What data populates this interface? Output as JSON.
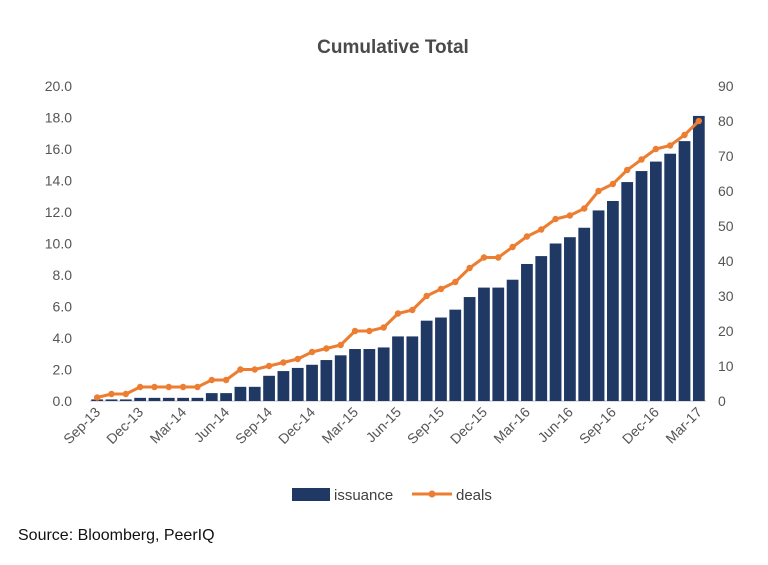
{
  "chart_data": {
    "type": "bar+line",
    "title": "Cumulative Total",
    "x": [
      "Sep-13",
      "Oct-13",
      "Nov-13",
      "Dec-13",
      "Jan-14",
      "Feb-14",
      "Mar-14",
      "Apr-14",
      "May-14",
      "Jun-14",
      "Jul-14",
      "Aug-14",
      "Sep-14",
      "Oct-14",
      "Nov-14",
      "Dec-14",
      "Jan-15",
      "Feb-15",
      "Mar-15",
      "Apr-15",
      "May-15",
      "Jun-15",
      "Jul-15",
      "Aug-15",
      "Sep-15",
      "Oct-15",
      "Nov-15",
      "Dec-15",
      "Jan-16",
      "Feb-16",
      "Mar-16",
      "Apr-16",
      "May-16",
      "Jun-16",
      "Jul-16",
      "Aug-16",
      "Sep-16",
      "Oct-16",
      "Nov-16",
      "Dec-16",
      "Jan-17",
      "Feb-17",
      "Mar-17"
    ],
    "x_tick_labels": [
      "Sep-13",
      "Dec-13",
      "Mar-14",
      "Jun-14",
      "Sep-14",
      "Dec-14",
      "Mar-15",
      "Jun-15",
      "Sep-15",
      "Dec-15",
      "Mar-16",
      "Jun-16",
      "Sep-16",
      "Dec-16",
      "Mar-17"
    ],
    "series": [
      {
        "name": "issuance",
        "type": "bar",
        "axis": "left",
        "color": "#1f3864",
        "values": [
          0.1,
          0.1,
          0.1,
          0.2,
          0.2,
          0.2,
          0.2,
          0.2,
          0.5,
          0.5,
          0.9,
          0.9,
          1.6,
          1.9,
          2.1,
          2.3,
          2.6,
          2.9,
          3.3,
          3.3,
          3.4,
          4.1,
          4.1,
          5.1,
          5.3,
          5.8,
          6.6,
          7.2,
          7.2,
          7.7,
          8.7,
          9.2,
          10.0,
          10.4,
          11.0,
          12.1,
          12.7,
          13.9,
          14.6,
          15.2,
          15.7,
          16.5,
          18.1
        ]
      },
      {
        "name": "deals",
        "type": "line",
        "axis": "right",
        "color": "#ed7d31",
        "values": [
          1,
          2,
          2,
          4,
          4,
          4,
          4,
          4,
          6,
          6,
          9,
          9,
          10,
          11,
          12,
          14,
          15,
          16,
          20,
          20,
          21,
          25,
          26,
          30,
          32,
          34,
          38,
          41,
          41,
          44,
          47,
          49,
          52,
          53,
          55,
          60,
          62,
          66,
          69,
          72,
          73,
          76,
          80
        ]
      }
    ],
    "y_left": {
      "ticks": [
        "0.0",
        "2.0",
        "4.0",
        "6.0",
        "8.0",
        "10.0",
        "12.0",
        "14.0",
        "16.0",
        "18.0",
        "20.0"
      ],
      "ylim": [
        0,
        20
      ]
    },
    "y_right": {
      "ticks": [
        "0",
        "10",
        "20",
        "30",
        "40",
        "50",
        "60",
        "70",
        "80",
        "90"
      ],
      "ylim": [
        0,
        90
      ]
    },
    "grid": false,
    "legend_position": "bottom",
    "legend": {
      "bar_label": "issuance",
      "line_label": "deals"
    }
  },
  "footer": {
    "source": "Source: Bloomberg, PeerIQ"
  }
}
